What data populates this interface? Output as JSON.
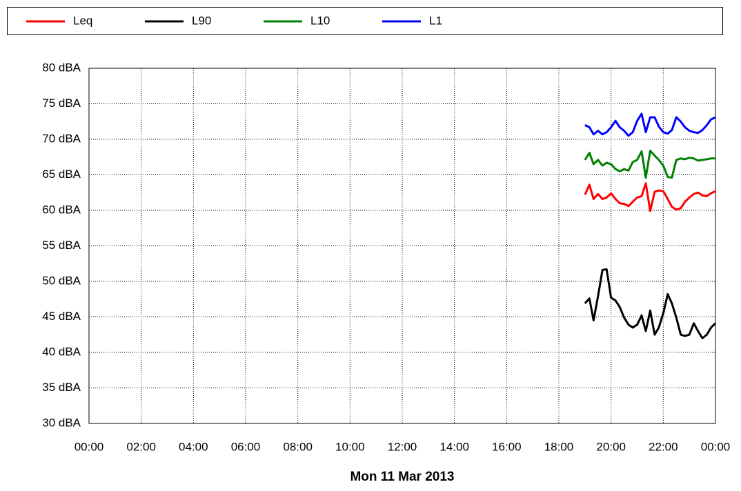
{
  "chart_data": {
    "type": "line",
    "x_label": "Mon 11 Mar 2013",
    "x": [
      19,
      19.17,
      19.33,
      19.5,
      19.67,
      19.83,
      20,
      20.17,
      20.33,
      20.5,
      20.67,
      20.83,
      21,
      21.17,
      21.33,
      21.5,
      21.67,
      21.83,
      22,
      22.17,
      22.33,
      22.5,
      22.67,
      22.83,
      23,
      23.17,
      23.33,
      23.5,
      23.67,
      23.83,
      24
    ],
    "series": [
      {
        "name": "Leq",
        "color": "#ff0000",
        "values": [
          62.2,
          63.6,
          61.6,
          62.3,
          61.6,
          61.8,
          62.4,
          61.6,
          61.0,
          60.9,
          60.6,
          61.2,
          61.8,
          62.0,
          63.8,
          59.9,
          62.6,
          62.8,
          62.7,
          61.6,
          60.5,
          60.1,
          60.3,
          61.2,
          61.8,
          62.3,
          62.5,
          62.1,
          62.0,
          62.4,
          62.7
        ]
      },
      {
        "name": "L90",
        "color": "#000000",
        "values": [
          46.9,
          47.6,
          44.5,
          47.9,
          51.6,
          51.7,
          47.7,
          47.3,
          46.4,
          44.9,
          43.9,
          43.5,
          43.9,
          45.2,
          43.0,
          45.9,
          42.5,
          43.5,
          45.5,
          48.2,
          46.9,
          44.9,
          42.5,
          42.3,
          42.5,
          44.1,
          43.0,
          42.0,
          42.5,
          43.5,
          44.1
        ]
      },
      {
        "name": "L10",
        "color": "#008000",
        "values": [
          67.1,
          68.1,
          66.5,
          67.1,
          66.3,
          66.7,
          66.5,
          65.8,
          65.5,
          65.8,
          65.6,
          66.8,
          67.1,
          68.3,
          64.6,
          68.4,
          67.7,
          67.1,
          66.3,
          64.7,
          64.6,
          67.1,
          67.3,
          67.2,
          67.4,
          67.3,
          67.0,
          67.1,
          67.2,
          67.3,
          67.3
        ]
      },
      {
        "name": "L1",
        "color": "#0000ff",
        "values": [
          72.0,
          71.7,
          70.7,
          71.2,
          70.7,
          71.0,
          71.7,
          72.6,
          71.7,
          71.2,
          70.5,
          71.0,
          72.6,
          73.6,
          71.0,
          73.1,
          73.1,
          71.8,
          71.0,
          70.8,
          71.3,
          73.1,
          72.5,
          71.7,
          71.2,
          71.0,
          70.9,
          71.3,
          72.0,
          72.8,
          73.1
        ]
      }
    ],
    "xlim": [
      0,
      24
    ],
    "xticks": [
      {
        "value": 0,
        "label": "00:00"
      },
      {
        "value": 2,
        "label": "02:00"
      },
      {
        "value": 4,
        "label": "04:00"
      },
      {
        "value": 6,
        "label": "06:00"
      },
      {
        "value": 8,
        "label": "08:00"
      },
      {
        "value": 10,
        "label": "10:00"
      },
      {
        "value": 12,
        "label": "12:00"
      },
      {
        "value": 14,
        "label": "14:00"
      },
      {
        "value": 16,
        "label": "16:00"
      },
      {
        "value": 18,
        "label": "18:00"
      },
      {
        "value": 20,
        "label": "20:00"
      },
      {
        "value": 22,
        "label": "22:00"
      },
      {
        "value": 24,
        "label": "00:00"
      }
    ],
    "ylim": [
      30,
      80
    ],
    "yticks": [
      {
        "value": 30,
        "label": "30 dBA"
      },
      {
        "value": 35,
        "label": "35 dBA"
      },
      {
        "value": 40,
        "label": "40 dBA"
      },
      {
        "value": 45,
        "label": "45 dBA"
      },
      {
        "value": 50,
        "label": "50 dBA"
      },
      {
        "value": 55,
        "label": "55 dBA"
      },
      {
        "value": 60,
        "label": "60 dBA"
      },
      {
        "value": 65,
        "label": "65 dBA"
      },
      {
        "value": 70,
        "label": "70 dBA"
      },
      {
        "value": 75,
        "label": "75 dBA"
      },
      {
        "value": 80,
        "label": "80 dBA"
      }
    ],
    "grid": true,
    "legend": "top"
  }
}
